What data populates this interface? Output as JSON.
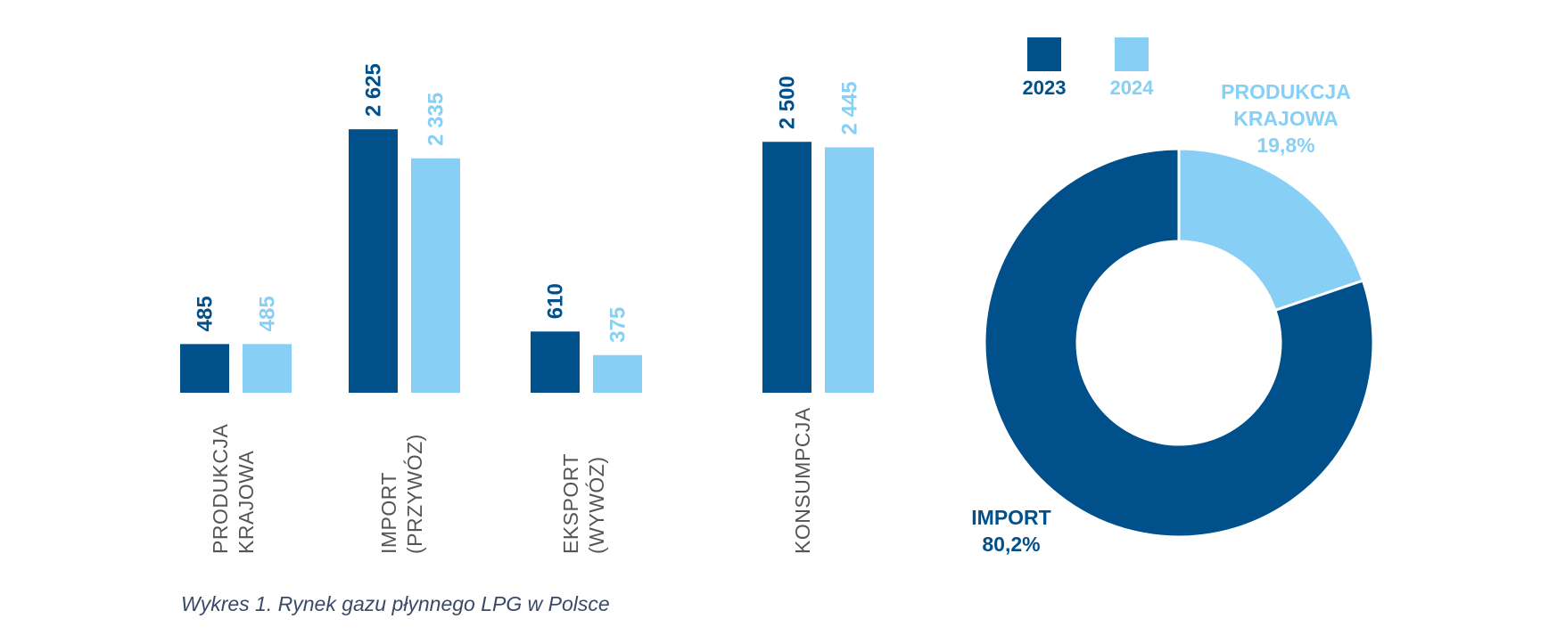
{
  "caption": "Wykres 1. Rynek gazu płynnego LPG w Polsce",
  "colors": {
    "2023": "#00508c",
    "2024": "#87cff5"
  },
  "chart_data": [
    {
      "type": "bar",
      "categories": [
        [
          "PRODUKCJA",
          "KRAJOWA"
        ],
        [
          "IMPORT",
          "(PRZYWÓZ)"
        ],
        [
          "EKSPORT",
          "(WYWÓZ)"
        ],
        [
          "KONSUMPCJA"
        ]
      ],
      "series": [
        {
          "name": "2023",
          "values": [
            485,
            2625,
            610,
            2500
          ],
          "labels": [
            "485",
            "2 625",
            "610",
            "2 500"
          ]
        },
        {
          "name": "2024",
          "values": [
            485,
            2335,
            375,
            2445
          ],
          "labels": [
            "485",
            "2 335",
            "375",
            "2 445"
          ]
        }
      ],
      "legend": "top-right",
      "grid": false
    },
    {
      "type": "pie",
      "slices": [
        {
          "name": [
            "PRODUKCJA",
            "KRAJOWA"
          ],
          "value": 19.8,
          "label": "19,8%"
        },
        {
          "name": [
            "IMPORT"
          ],
          "value": 80.2,
          "label": "80,2%"
        }
      ]
    }
  ]
}
